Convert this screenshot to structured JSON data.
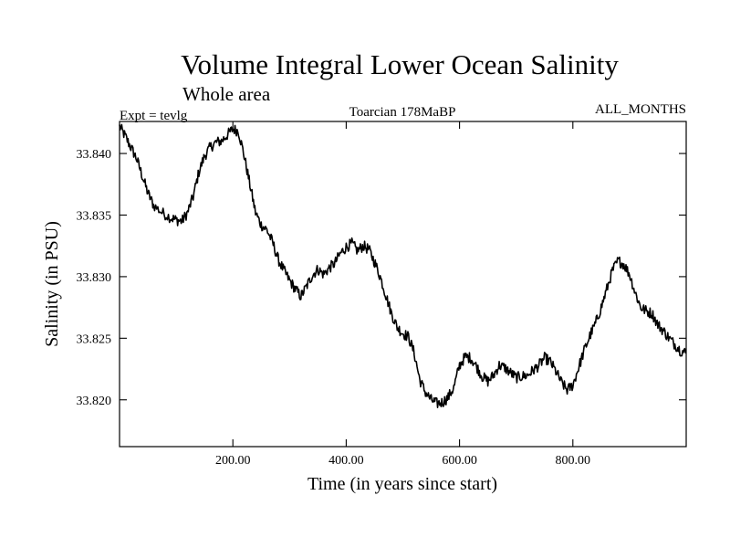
{
  "chart_data": {
    "type": "line",
    "title": "Volume Integral Lower Ocean Salinity",
    "subtitle": "Whole area",
    "experiment_label": "Expt = tevlg",
    "period_label": "Toarcian 178MaBP",
    "months_label": "ALL_MONTHS",
    "xlabel": "Time (in years since start)",
    "ylabel": "Salinity (in PSU)",
    "xlim": [
      0,
      1000
    ],
    "ylim": [
      33.8162,
      33.8426
    ],
    "x_ticks": [
      200,
      400,
      600,
      800
    ],
    "x_tick_labels": [
      "200.00",
      "400.00",
      "600.00",
      "800.00"
    ],
    "y_ticks": [
      33.82,
      33.825,
      33.83,
      33.835,
      33.84
    ],
    "y_tick_labels": [
      "33.820",
      "33.825",
      "33.830",
      "33.835",
      "33.840"
    ],
    "grid": false,
    "series": [
      {
        "name": "Salinity",
        "color": "#000000",
        "x": [
          0,
          10,
          20,
          30,
          40,
          50,
          60,
          75,
          90,
          100,
          110,
          120,
          130,
          140,
          150,
          160,
          170,
          180,
          190,
          200,
          210,
          220,
          230,
          240,
          250,
          260,
          270,
          280,
          290,
          300,
          310,
          320,
          330,
          340,
          350,
          360,
          370,
          380,
          390,
          400,
          410,
          420,
          430,
          440,
          450,
          460,
          470,
          480,
          490,
          500,
          510,
          520,
          530,
          540,
          550,
          560,
          570,
          580,
          590,
          600,
          610,
          620,
          630,
          640,
          650,
          660,
          670,
          680,
          690,
          700,
          710,
          720,
          730,
          740,
          750,
          760,
          770,
          780,
          790,
          800,
          810,
          820,
          830,
          840,
          850,
          860,
          870,
          880,
          890,
          900,
          910,
          920,
          930,
          940,
          950,
          960,
          970,
          980,
          990,
          1000
        ],
        "values": [
          33.8422,
          33.8414,
          33.8405,
          33.8396,
          33.8382,
          33.8368,
          33.8358,
          33.8352,
          33.8348,
          33.8346,
          33.8345,
          33.8352,
          33.8365,
          33.8385,
          33.8398,
          33.8405,
          33.8409,
          33.841,
          33.8415,
          33.842,
          33.8418,
          33.8398,
          33.8375,
          33.8352,
          33.8342,
          33.8338,
          33.8328,
          33.8314,
          33.8305,
          33.8297,
          33.829,
          33.8284,
          33.8292,
          33.8301,
          33.8306,
          33.8302,
          33.8307,
          33.8311,
          33.8319,
          33.8324,
          33.8327,
          33.8321,
          33.8325,
          33.8322,
          33.8312,
          33.83,
          33.8285,
          33.827,
          33.8259,
          33.8254,
          33.8251,
          33.8238,
          33.8216,
          33.8206,
          33.82,
          33.8197,
          33.8198,
          33.8202,
          33.821,
          33.8228,
          33.8235,
          33.8234,
          33.8227,
          33.8219,
          33.8215,
          33.822,
          33.8228,
          33.8226,
          33.8222,
          33.8218,
          33.8219,
          33.822,
          33.8224,
          33.8228,
          33.8234,
          33.8231,
          33.8223,
          33.8214,
          33.8208,
          33.8212,
          33.8226,
          33.824,
          33.8252,
          33.8262,
          33.8275,
          33.829,
          33.8305,
          33.8313,
          33.831,
          33.8302,
          33.8287,
          33.8275,
          33.8272,
          33.827,
          33.8261,
          33.8256,
          33.825,
          33.8245,
          33.824,
          33.8238
        ]
      }
    ]
  }
}
